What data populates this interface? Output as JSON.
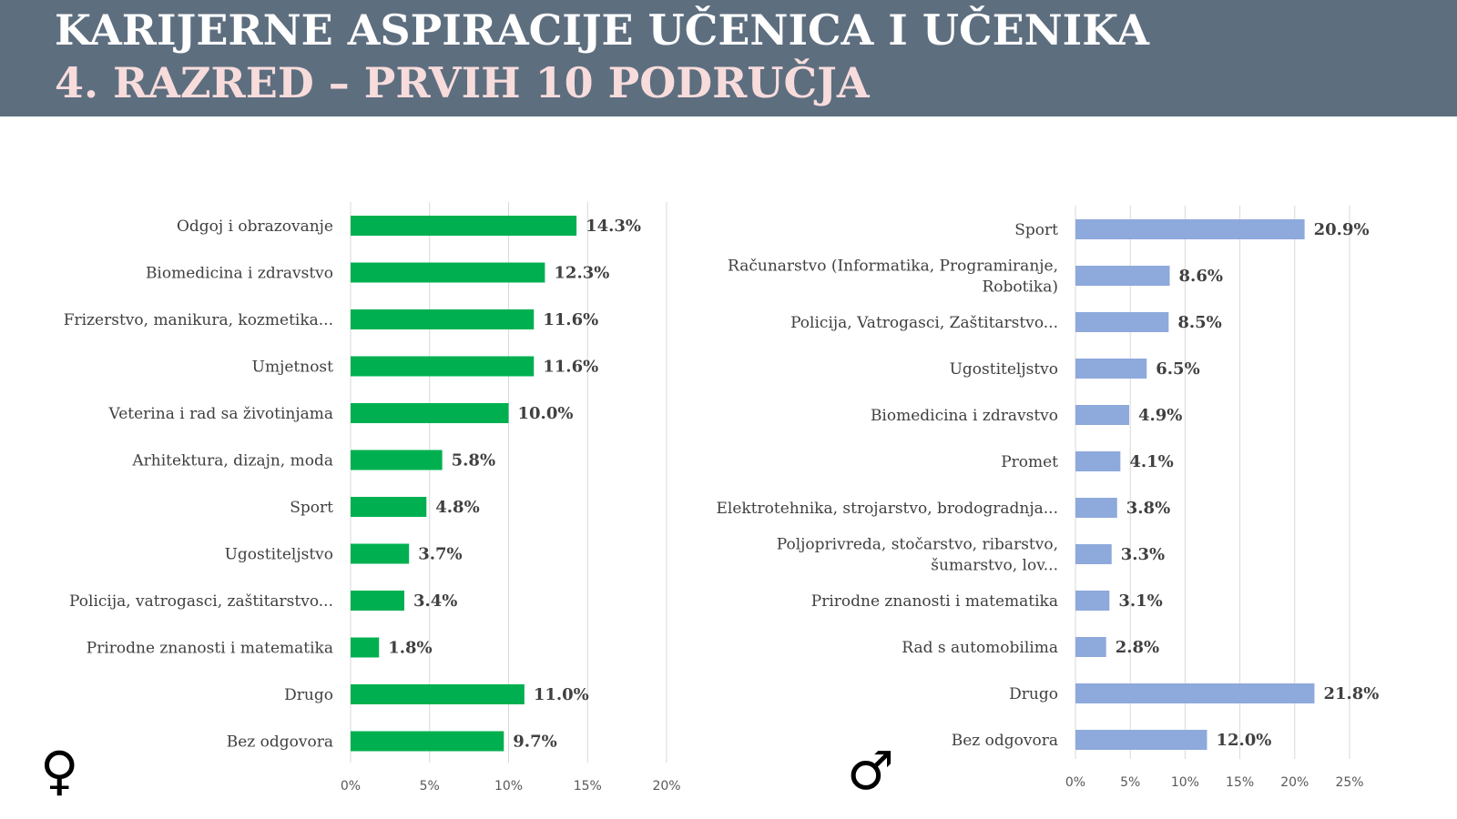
{
  "header": {
    "title_line1": "KARIJERNE ASPIRACIJE UČENICA I UČENIKA",
    "title_line2": "4. RAZRED – PRVIH 10 PODRUČJA",
    "background_color": "#5d6e7f",
    "line2_color": "#f8dcdc"
  },
  "icons": {
    "female": "♀",
    "male": "♂"
  },
  "chart_data": [
    {
      "type": "bar",
      "orientation": "horizontal",
      "color": "#00b050",
      "categories": [
        [
          "Odgoj i obrazovanje"
        ],
        [
          "Biomedicina i zdravstvo"
        ],
        [
          "Frizerstvo, manikura, kozmetika..."
        ],
        [
          "Umjetnost"
        ],
        [
          "Veterina i rad sa životinjama"
        ],
        [
          "Arhitektura, dizajn, moda"
        ],
        [
          "Sport"
        ],
        [
          "Ugostiteljstvo"
        ],
        [
          "Policija, vatrogasci, zaštitarstvo..."
        ],
        [
          "Prirodne znanosti i matematika"
        ],
        [
          "Drugo"
        ],
        [
          "Bez odgovora"
        ]
      ],
      "values": [
        14.3,
        12.3,
        11.6,
        11.6,
        10.0,
        5.8,
        4.8,
        3.7,
        3.4,
        1.8,
        11.0,
        9.7
      ],
      "value_labels": [
        "14.3%",
        "12.3%",
        "11.6%",
        "11.6%",
        "10.0%",
        "5.8%",
        "4.8%",
        "3.7%",
        "3.4%",
        "1.8%",
        "11.0%",
        "9.7%"
      ],
      "xlim": [
        0,
        20
      ],
      "ticks": [
        0,
        5,
        10,
        15,
        20
      ],
      "tick_labels": [
        "0%",
        "5%",
        "10%",
        "15%",
        "20%"
      ],
      "grid": true
    },
    {
      "type": "bar",
      "orientation": "horizontal",
      "color": "#8ea9db",
      "categories": [
        [
          "Sport"
        ],
        [
          "Računarstvo (Informatika, Programiranje,",
          "Robotika)"
        ],
        [
          "Policija, Vatrogasci, Zaštitarstvo..."
        ],
        [
          "Ugostiteljstvo"
        ],
        [
          "Biomedicina i zdravstvo"
        ],
        [
          "Promet"
        ],
        [
          "Elektrotehnika, strojarstvo, brodogradnja..."
        ],
        [
          "Poljoprivreda, stočarstvo, ribarstvo,",
          "šumarstvo, lov..."
        ],
        [
          "Prirodne znanosti i matematika"
        ],
        [
          "Rad s automobilima"
        ],
        [
          "Drugo"
        ],
        [
          "Bez odgovora"
        ]
      ],
      "values": [
        20.9,
        8.6,
        8.5,
        6.5,
        4.9,
        4.1,
        3.8,
        3.3,
        3.1,
        2.8,
        21.8,
        12.0
      ],
      "value_labels": [
        "20.9%",
        "8.6%",
        "8.5%",
        "6.5%",
        "4.9%",
        "4.1%",
        "3.8%",
        "3.3%",
        "3.1%",
        "2.8%",
        "21.8%",
        "12.0%"
      ],
      "xlim": [
        0,
        25
      ],
      "ticks": [
        0,
        5,
        10,
        15,
        20,
        25
      ],
      "tick_labels": [
        "0%",
        "5%",
        "10%",
        "15%",
        "20%",
        "25%"
      ],
      "grid": true
    }
  ]
}
